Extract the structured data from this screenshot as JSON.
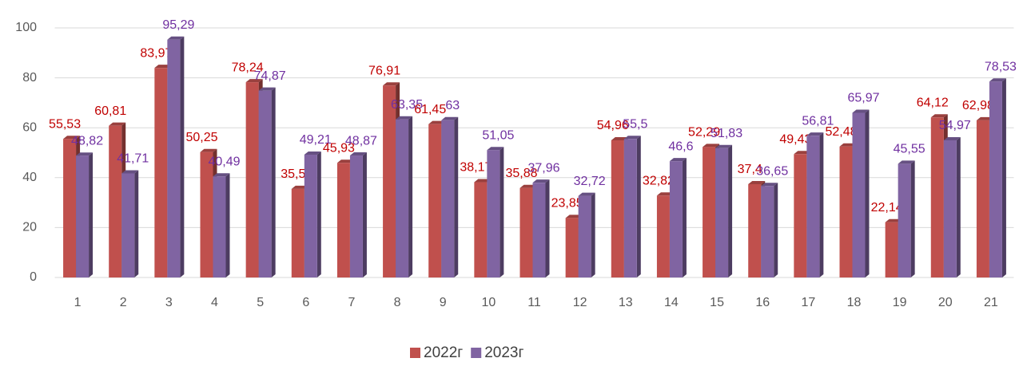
{
  "chart_data": {
    "type": "bar3d",
    "categories": [
      "1",
      "2",
      "3",
      "4",
      "5",
      "6",
      "7",
      "8",
      "9",
      "10",
      "11",
      "12",
      "13",
      "14",
      "15",
      "16",
      "17",
      "18",
      "19",
      "20",
      "21"
    ],
    "series": [
      {
        "name": "2022г",
        "color": "#c0504d",
        "label_color": "#c00000",
        "values": [
          55.53,
          60.81,
          83.97,
          50.25,
          78.24,
          35.5,
          45.93,
          76.91,
          61.45,
          38.17,
          35.88,
          23.85,
          54.96,
          32.82,
          52.29,
          37.4,
          49.43,
          52.48,
          22.14,
          64.12,
          62.98
        ],
        "value_labels": [
          "55,53",
          "60,81",
          "83,97",
          "50,25",
          "78,24",
          "35,5",
          "45,93",
          "76,91",
          "61,45",
          "38,17",
          "35,88",
          "23,85",
          "54,96",
          "32,82",
          "52,29",
          "37,4",
          "49,43",
          "52,48",
          "22,14",
          "64,12",
          "62,98"
        ]
      },
      {
        "name": "2023г",
        "color": "#8064a2",
        "label_color": "#7030a0",
        "values": [
          48.82,
          41.71,
          95.29,
          40.49,
          74.87,
          49.21,
          48.87,
          63.35,
          63,
          51.05,
          37.96,
          32.72,
          55.5,
          46.6,
          51.83,
          36.65,
          56.81,
          65.97,
          45.55,
          54.97,
          78.53
        ],
        "value_labels": [
          "48,82",
          "41,71",
          "95,29",
          "40,49",
          "74,87",
          "49,21",
          "48,87",
          "63,35",
          "63",
          "51,05",
          "37,96",
          "32,72",
          "55,5",
          "46,6",
          "51,83",
          "36,65",
          "56,81",
          "65,97",
          "45,55",
          "54,97",
          "78,53"
        ]
      }
    ],
    "ylim": [
      0,
      100
    ],
    "yticks": [
      0,
      20,
      40,
      60,
      80,
      100
    ],
    "grid": true,
    "legend": "bottom"
  }
}
